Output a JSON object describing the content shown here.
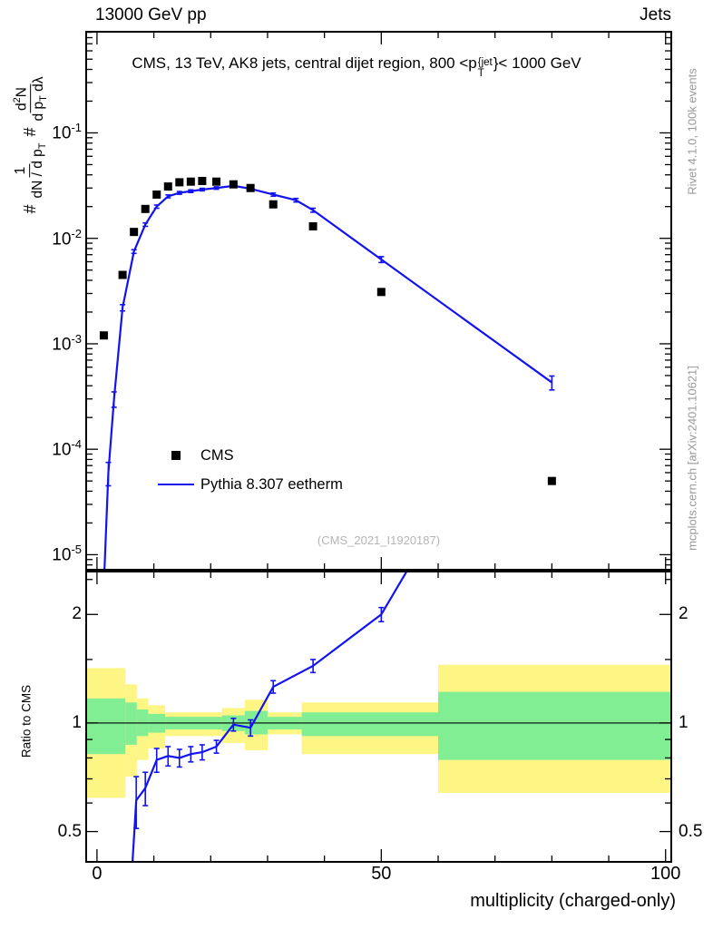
{
  "header": {
    "left": "13000 GeV pp",
    "right": "Jets"
  },
  "title": {
    "prefix": "CMS, 13 TeV, AK8 jets, central dijet region, 800 <p",
    "sup": "{jet",
    "sub": "T",
    "suffix": "}< 1000 GeV"
  },
  "watermark": "(CMS_2021_I1920187)",
  "xlabel": "multiplicity (charged-only)",
  "ylabel_ratio": "Ratio to CMS",
  "ylabel_main": {
    "hash1": "#",
    "f1num": "1",
    "f1den": "dN / d p",
    "f1den_sub": "T",
    "hash2": "#",
    "f2num": "d",
    "f2num_sup": "2",
    "f2num_n": "N",
    "f2den": "d p",
    "f2den_sub": "T",
    "f2den_tail": " dλ"
  },
  "side_labels": {
    "top": "Rivet 4.1.0,  100k events",
    "bottom": "mcplots.cern.ch [arXiv:2401.10621]"
  },
  "legend": {
    "items": [
      {
        "label": "CMS",
        "marker": "square"
      },
      {
        "label": "Pythia 8.307 eetherm",
        "marker": "line"
      }
    ]
  },
  "colors": {
    "cms": "#000000",
    "pythia": "#1313ef",
    "band_yellow": "#fdf584",
    "band_green": "#82ee93",
    "frame": "#000000",
    "gray_text": "#9a9a9a",
    "watermark": "#b5b5b5"
  },
  "chart_data": [
    {
      "type": "line",
      "panel": "main",
      "title": "CMS, 13 TeV, AK8 jets, central dijet region, 800 < pT^{jet} < 1000 GeV",
      "xlabel": "multiplicity (charged-only)",
      "ylabel": "# 1/(dN/dpT)  # d2N/(dpT dlambda)",
      "xlim": [
        -1.9,
        101
      ],
      "ylog": true,
      "ylim": [
        7.2e-06,
        0.91
      ],
      "ytick_decades": [
        -1,
        -2,
        -3,
        -4,
        -5
      ],
      "xticks_major": [
        0,
        50,
        100
      ],
      "xtick_minor_step": 10,
      "grid": false,
      "legend_position": "left-middle",
      "series": [
        {
          "name": "CMS",
          "type": "scatter",
          "marker": "square",
          "points": [
            [
              1.2,
              0.0012
            ],
            [
              4.5,
              0.0045
            ],
            [
              6.5,
              0.0115
            ],
            [
              8.5,
              0.019
            ],
            [
              10.5,
              0.026
            ],
            [
              12.5,
              0.031
            ],
            [
              14.5,
              0.034
            ],
            [
              16.5,
              0.0345
            ],
            [
              18.5,
              0.035
            ],
            [
              21,
              0.0345
            ],
            [
              24,
              0.0325
            ],
            [
              27,
              0.03
            ],
            [
              31,
              0.021
            ],
            [
              38,
              0.013
            ],
            [
              50,
              0.0031
            ],
            [
              80,
              5e-05
            ]
          ]
        },
        {
          "name": "Pythia 8.307 eetherm",
          "type": "line",
          "points": [
            [
              1.2,
              5e-06,
              0
            ],
            [
              2,
              6e-05,
              1.5e-05
            ],
            [
              3,
              0.0003,
              5e-05
            ],
            [
              4.5,
              0.0022,
              0.00015
            ],
            [
              6.5,
              0.0075,
              0.0003
            ],
            [
              8.5,
              0.0135,
              0.0005
            ],
            [
              10.5,
              0.02,
              0.0007
            ],
            [
              12.5,
              0.025,
              0.0008
            ],
            [
              14.5,
              0.027,
              0.0008
            ],
            [
              16.5,
              0.028,
              0.0008
            ],
            [
              18.5,
              0.029,
              0.0008
            ],
            [
              21,
              0.03,
              0.0008
            ],
            [
              24,
              0.0315,
              0.0009
            ],
            [
              27,
              0.0295,
              0.0009
            ],
            [
              31,
              0.026,
              0.0009
            ],
            [
              35,
              0.023,
              0.0009
            ],
            [
              38,
              0.0185,
              0.0008
            ],
            [
              50,
              0.0063,
              0.0004
            ],
            [
              80,
              0.00043,
              6.5e-05
            ]
          ]
        }
      ]
    },
    {
      "type": "ratio",
      "panel": "ratio",
      "ylabel": "Ratio to CMS",
      "xlim": [
        -1.9,
        101
      ],
      "ylog": true,
      "ylim": [
        0.412,
        2.63
      ],
      "yticks_major": [
        2,
        1,
        0.5
      ],
      "yticks_minor": [
        0.6,
        0.7,
        0.8,
        0.9,
        1.5,
        2.5
      ],
      "reference_line": 1,
      "bands": [
        {
          "x0": -1.9,
          "x1": 5,
          "yellow": [
            0.62,
            1.42
          ],
          "green": [
            0.82,
            1.17
          ]
        },
        {
          "x0": 5,
          "x1": 7,
          "yellow": [
            0.71,
            1.28
          ],
          "green": [
            0.87,
            1.14
          ]
        },
        {
          "x0": 7,
          "x1": 9,
          "yellow": [
            0.79,
            1.17
          ],
          "green": [
            0.92,
            1.09
          ]
        },
        {
          "x0": 9,
          "x1": 12,
          "yellow": [
            0.85,
            1.12
          ],
          "green": [
            0.94,
            1.06
          ]
        },
        {
          "x0": 12,
          "x1": 22,
          "yellow": [
            0.92,
            1.07
          ],
          "green": [
            0.96,
            1.04
          ]
        },
        {
          "x0": 22,
          "x1": 26,
          "yellow": [
            0.88,
            1.1
          ],
          "green": [
            0.95,
            1.05
          ]
        },
        {
          "x0": 26,
          "x1": 30,
          "yellow": [
            0.84,
            1.16
          ],
          "green": [
            0.93,
            1.08
          ]
        },
        {
          "x0": 30,
          "x1": 36,
          "yellow": [
            0.93,
            1.07
          ],
          "green": [
            0.96,
            1.04
          ]
        },
        {
          "x0": 36,
          "x1": 60,
          "yellow": [
            0.82,
            1.14
          ],
          "green": [
            0.92,
            1.07
          ]
        },
        {
          "x0": 60,
          "x1": 101,
          "yellow": [
            0.64,
            1.45
          ],
          "green": [
            0.79,
            1.22
          ]
        }
      ],
      "series": [
        {
          "name": "Pythia 8.307 eetherm / CMS",
          "type": "line",
          "points": [
            [
              6.2,
              0.4,
              0
            ],
            [
              6.9,
              0.61,
              0.1
            ],
            [
              8.5,
              0.66,
              0.07
            ],
            [
              10.5,
              0.79,
              0.06
            ],
            [
              12.5,
              0.81,
              0.05
            ],
            [
              14.5,
              0.8,
              0.045
            ],
            [
              16.5,
              0.82,
              0.04
            ],
            [
              18.5,
              0.83,
              0.04
            ],
            [
              21,
              0.86,
              0.035
            ],
            [
              24,
              0.99,
              0.04
            ],
            [
              27,
              0.97,
              0.05
            ],
            [
              31,
              1.26,
              0.05
            ],
            [
              38,
              1.44,
              0.06
            ],
            [
              50,
              2.0,
              0.09
            ],
            [
              55,
              2.72,
              0
            ]
          ]
        }
      ]
    }
  ]
}
